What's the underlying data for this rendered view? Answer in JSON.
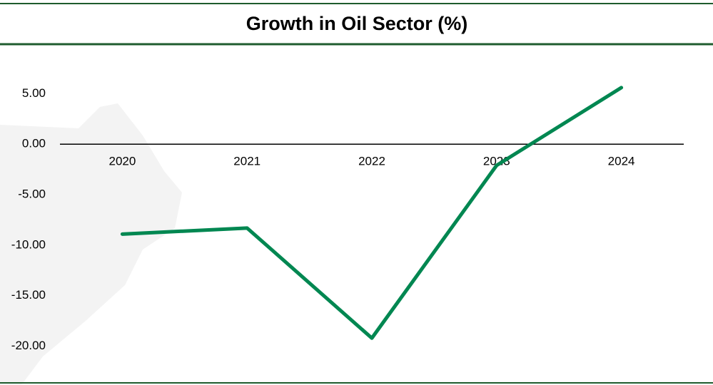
{
  "chart_data": {
    "type": "line",
    "title": "Growth in Oil Sector (%)",
    "categories": [
      "2020",
      "2021",
      "2022",
      "2023",
      "2024"
    ],
    "series": [
      {
        "color": "#008751",
        "values": [
          -8.9,
          -8.3,
          -19.2,
          -2.1,
          5.6
        ]
      }
    ],
    "ylim": [
      -22.5,
      7.5
    ],
    "yticks": [
      {
        "value": 5,
        "label": "5.00"
      },
      {
        "value": 0,
        "label": "0.00"
      },
      {
        "value": -5,
        "label": "-5.00"
      },
      {
        "value": -10,
        "label": "-10.00"
      },
      {
        "value": -15,
        "label": "-15.00"
      },
      {
        "value": -20,
        "label": "-20.00"
      }
    ],
    "grid": false
  }
}
